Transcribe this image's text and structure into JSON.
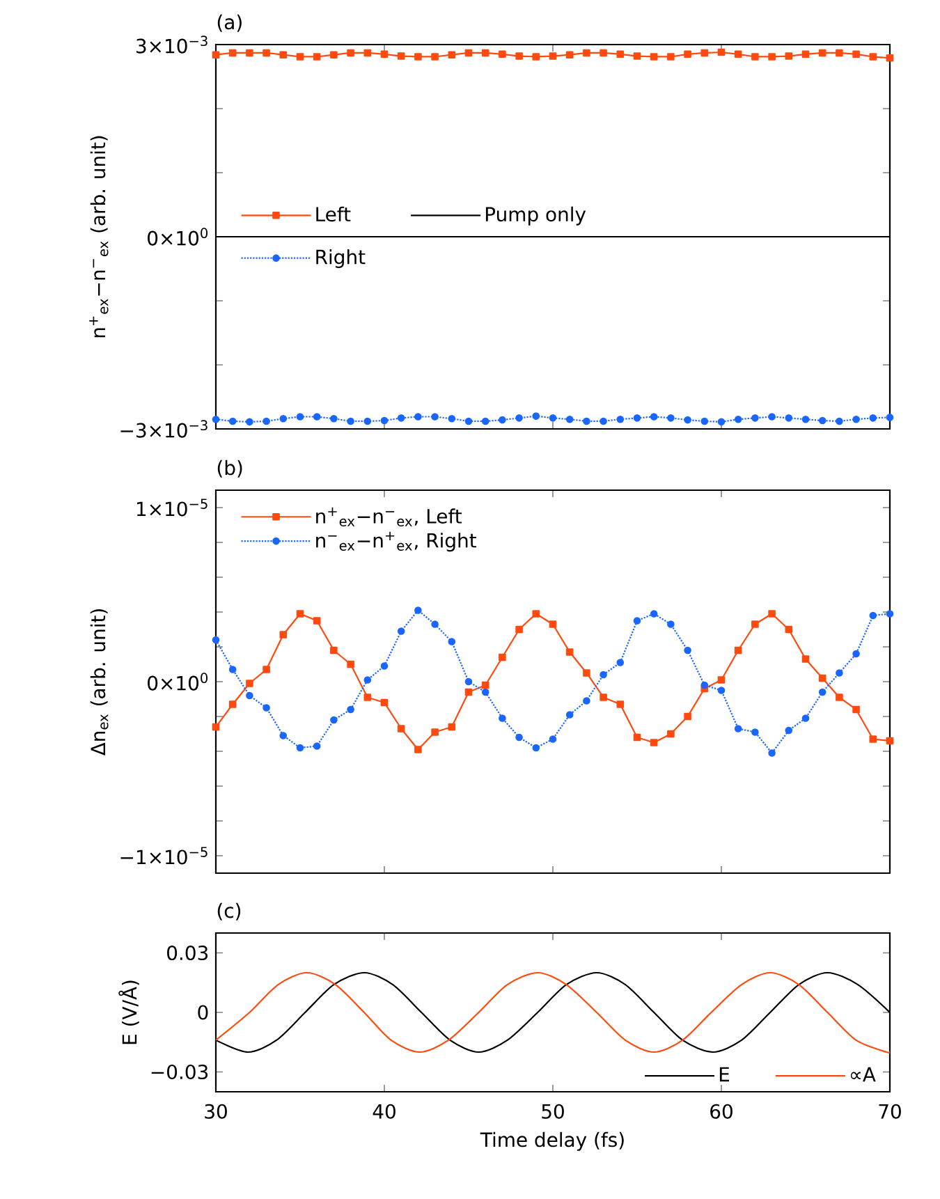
{
  "chart_data": [
    {
      "type": "line",
      "title": "(a)",
      "ylabel": "n$^{+}$$_{ex}$−n$^{−}$$_{ex}$ (arb. unit)",
      "x": [
        30,
        31,
        32,
        33,
        34,
        35,
        36,
        37,
        38,
        39,
        40,
        41,
        42,
        43,
        44,
        45,
        46,
        47,
        48,
        49,
        50,
        51,
        52,
        53,
        54,
        55,
        56,
        57,
        58,
        59,
        60,
        61,
        62,
        63,
        64,
        65,
        66,
        67,
        68,
        69,
        70
      ],
      "xlim": [
        30,
        70
      ],
      "xticks": [
        30,
        40,
        50,
        60,
        70
      ],
      "ylim": [
        -0.003,
        0.003
      ],
      "yticks": [
        {
          "value": -0.003,
          "label": "−3×10$^{−3}$"
        },
        {
          "value": -0.002,
          "label": null
        },
        {
          "value": -0.001,
          "label": null
        },
        {
          "value": 0,
          "label": "0×10$^{0}$"
        },
        {
          "value": 0.001,
          "label": null
        },
        {
          "value": 0.002,
          "label": null
        },
        {
          "value": 0.003,
          "label": "3×10$^{−3}$"
        }
      ],
      "tick_labels": "y",
      "legend": "left",
      "series": [
        {
          "name": "Left",
          "color": "#ff4a0f",
          "marker": "square",
          "line_style": "solid",
          "values": [
            0.00284,
            0.00287,
            0.00287,
            0.00287,
            0.00284,
            0.00281,
            0.00281,
            0.00284,
            0.00287,
            0.00287,
            0.00285,
            0.00282,
            0.00281,
            0.00281,
            0.00284,
            0.00287,
            0.00287,
            0.00285,
            0.00282,
            0.00281,
            0.00282,
            0.00284,
            0.00287,
            0.00287,
            0.00285,
            0.00282,
            0.00281,
            0.00281,
            0.00285,
            0.00287,
            0.00288,
            0.00285,
            0.00281,
            0.00281,
            0.00282,
            0.00285,
            0.00287,
            0.00287,
            0.00285,
            0.00281,
            0.00279
          ]
        },
        {
          "name": "Pump only",
          "color": "#000000",
          "marker": "none",
          "line_style": "solid",
          "x": [
            30,
            70
          ],
          "values": [
            0,
            0
          ]
        },
        {
          "name": "Right",
          "color": "#1a66ff",
          "marker": "circle",
          "line_style": "dotted",
          "values": [
            -0.00285,
            -0.00288,
            -0.00289,
            -0.00288,
            -0.00284,
            -0.00281,
            -0.00281,
            -0.00284,
            -0.00288,
            -0.00288,
            -0.00287,
            -0.00283,
            -0.00281,
            -0.00281,
            -0.00284,
            -0.00288,
            -0.00288,
            -0.00286,
            -0.00283,
            -0.0028,
            -0.00283,
            -0.00285,
            -0.00288,
            -0.00288,
            -0.00285,
            -0.00283,
            -0.00281,
            -0.00283,
            -0.00286,
            -0.00288,
            -0.00289,
            -0.00285,
            -0.00283,
            -0.00281,
            -0.00283,
            -0.00285,
            -0.00287,
            -0.00288,
            -0.00285,
            -0.00283,
            -0.00282
          ]
        }
      ]
    },
    {
      "type": "line",
      "title": "(b)",
      "ylabel": "Δn$_{ex}$ (arb. unit)",
      "x": [
        30,
        31,
        32,
        33,
        34,
        35,
        36,
        37,
        38,
        39,
        40,
        41,
        42,
        43,
        44,
        45,
        46,
        47,
        48,
        49,
        50,
        51,
        52,
        53,
        54,
        55,
        56,
        57,
        58,
        59,
        60,
        61,
        62,
        63,
        64,
        65,
        66,
        67,
        68,
        69,
        70
      ],
      "xlim": [
        30,
        70
      ],
      "xticks": [
        30,
        40,
        50,
        60,
        70
      ],
      "ylim": [
        -1.1e-05,
        1.1e-05
      ],
      "yticks": [
        {
          "value": -1e-05,
          "label": "−1×10$^{−5}$"
        },
        {
          "value": -8e-06,
          "label": null
        },
        {
          "value": -6e-06,
          "label": null
        },
        {
          "value": -4e-06,
          "label": null
        },
        {
          "value": -2e-06,
          "label": null
        },
        {
          "value": 0,
          "label": "0×10$^{0}$"
        },
        {
          "value": 2e-06,
          "label": null
        },
        {
          "value": 4e-06,
          "label": null
        },
        {
          "value": 6e-06,
          "label": null
        },
        {
          "value": 8e-06,
          "label": null
        },
        {
          "value": 1e-05,
          "label": "1×10$^{−5}$"
        }
      ],
      "tick_labels": "y",
      "legend": "top left",
      "series": [
        {
          "name": "n$^{+}$$_{ex}$−n$^{−}$$_{ex}$, Left",
          "color": "#ff4a0f",
          "marker": "square",
          "line_style": "solid",
          "values": [
            -2.6e-06,
            -1.3e-06,
            -1e-07,
            7e-07,
            2.7e-06,
            3.9e-06,
            3.5e-06,
            1.8e-06,
            1e-06,
            -9e-07,
            -1.2e-06,
            -2.7e-06,
            -3.9e-06,
            -2.9e-06,
            -2.6e-06,
            -6e-07,
            -2e-07,
            1.4e-06,
            3e-06,
            3.9e-06,
            3.3e-06,
            1.7e-06,
            5e-07,
            -9e-07,
            -1.3e-06,
            -3.2e-06,
            -3.5e-06,
            -3e-06,
            -2e-06,
            -4e-07,
            1e-07,
            1.8e-06,
            3.3e-06,
            3.9e-06,
            3e-06,
            1.3e-06,
            2e-07,
            -9e-07,
            -1.6e-06,
            -3.3e-06,
            -3.4e-06
          ]
        },
        {
          "name": "n$^{−}$$_{ex}$−n$^{+}$$_{ex}$, Right",
          "color": "#1a66ff",
          "marker": "circle",
          "line_style": "dotted",
          "values": [
            2.4e-06,
            7e-07,
            -8e-07,
            -1.5e-06,
            -3.1e-06,
            -3.8e-06,
            -3.7e-06,
            -2.2e-06,
            -1.6e-06,
            1e-07,
            9e-07,
            2.9e-06,
            4.1e-06,
            3.3e-06,
            2.3e-06,
            0,
            -6e-07,
            -2.1e-06,
            -3.2e-06,
            -3.8e-06,
            -3.3e-06,
            -1.9e-06,
            -1.1e-06,
            4e-07,
            1.1e-06,
            3.5e-06,
            3.9e-06,
            3.3e-06,
            1.8e-06,
            -2e-07,
            -5e-07,
            -2.7e-06,
            -2.9e-06,
            -4.1e-06,
            -2.8e-06,
            -2.1e-06,
            -6e-07,
            5e-07,
            1.6e-06,
            3.8e-06,
            3.9e-06
          ]
        }
      ]
    },
    {
      "type": "line",
      "title": "(c)",
      "xlabel": "Time delay (fs)",
      "ylabel": "E (V/Å)",
      "xlim": [
        30,
        70
      ],
      "xticks": [
        30,
        40,
        50,
        60,
        70
      ],
      "ylim": [
        -0.04,
        0.04
      ],
      "yticks": [
        {
          "value": -0.03,
          "label": "−0.03"
        },
        0,
        0.03
      ],
      "legend": "bottom right",
      "series": [
        {
          "name": "E",
          "color": "#000000",
          "marker": "none",
          "line_style": "solid",
          "x": [
            30,
            31.9,
            33.6,
            35.3,
            37.0,
            38.8,
            40.5,
            42.2,
            43.9,
            45.6,
            47.3,
            49.1,
            50.8,
            52.6,
            54.3,
            56.0,
            57.7,
            59.5,
            61.2,
            62.9,
            64.6,
            66.3,
            68.1,
            70
          ],
          "values": [
            -0.014,
            -0.02,
            -0.014,
            0,
            0.014,
            0.02,
            0.014,
            0,
            -0.014,
            -0.02,
            -0.014,
            0,
            0.014,
            0.02,
            0.014,
            0,
            -0.014,
            -0.02,
            -0.014,
            0,
            0.014,
            0.02,
            0.014,
            0
          ]
        },
        {
          "name": "∝A",
          "color": "#ff4a0f",
          "marker": "none",
          "line_style": "solid",
          "x": [
            30,
            32.0,
            33.7,
            35.4,
            37.1,
            38.8,
            40.4,
            42.1,
            43.8,
            45.6,
            47.3,
            49.1,
            50.8,
            52.6,
            54.3,
            56.0,
            57.7,
            59.4,
            61.2,
            62.9,
            64.6,
            66.3,
            68.0,
            69.8,
            70
          ],
          "values": [
            -0.014,
            0,
            0.014,
            0.02,
            0.014,
            0,
            -0.014,
            -0.02,
            -0.014,
            0,
            0.014,
            0.02,
            0.014,
            0,
            -0.014,
            -0.02,
            -0.014,
            0,
            0.014,
            0.02,
            0.014,
            0,
            -0.014,
            -0.02,
            -0.0195
          ]
        }
      ]
    }
  ]
}
